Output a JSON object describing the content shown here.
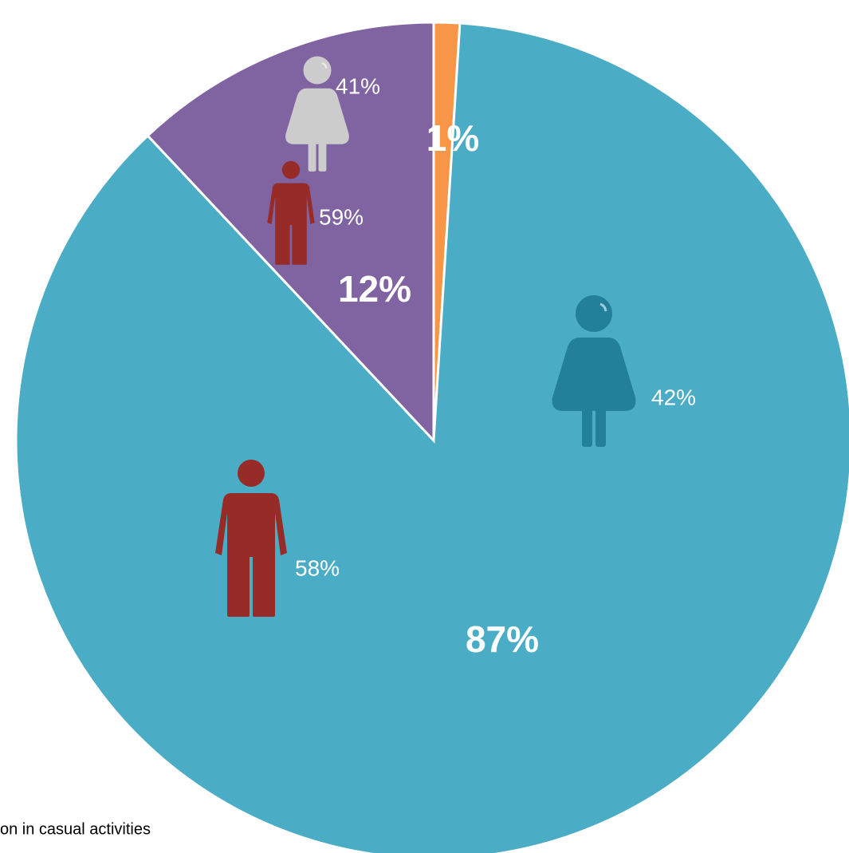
{
  "chart_data": {
    "type": "pie",
    "values": [
      1,
      87,
      12
    ],
    "value_labels": [
      "1%",
      "87%",
      "12%"
    ],
    "colors": [
      "#f79646",
      "#4bacc6",
      "#8064a2"
    ],
    "female_share": [
      null,
      42,
      41
    ],
    "female_labels": [
      null,
      "42%",
      "41%"
    ],
    "female_colors": [
      null,
      "#23809b",
      "#cccccc"
    ],
    "male_share": [
      null,
      58,
      59
    ],
    "male_labels": [
      null,
      "58%",
      "59%"
    ],
    "male_colors": [
      null,
      "#962b28",
      "#962b28"
    ],
    "note": "on in casual activities"
  }
}
